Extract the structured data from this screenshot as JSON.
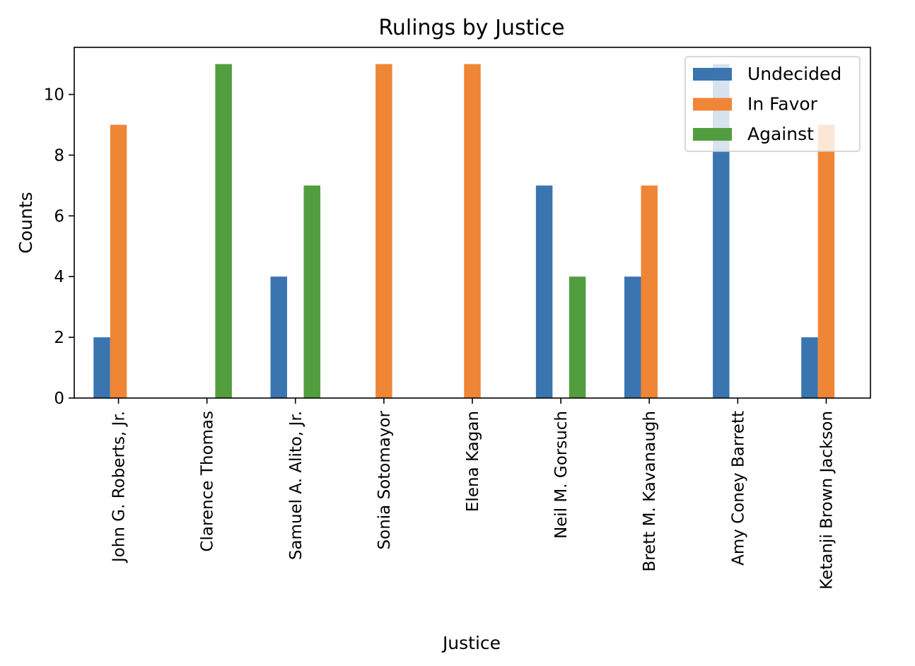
{
  "chart_data": {
    "type": "bar",
    "title": "Rulings by Justice",
    "xlabel": "Justice",
    "ylabel": "Counts",
    "categories": [
      "John G. Roberts, Jr.",
      "Clarence Thomas",
      "Samuel A. Alito, Jr.",
      "Sonia Sotomayor",
      "Elena Kagan",
      "Neil M. Gorsuch",
      "Brett M. Kavanaugh",
      "Amy Coney Barrett",
      "Ketanji Brown Jackson"
    ],
    "series": [
      {
        "name": "Undecided",
        "color": "#3a75b0",
        "values": [
          2,
          0,
          4,
          0,
          0,
          7,
          4,
          11,
          2
        ]
      },
      {
        "name": "In Favor",
        "color": "#ef8636",
        "values": [
          9,
          0,
          0,
          11,
          11,
          0,
          7,
          0,
          9
        ]
      },
      {
        "name": "Against",
        "color": "#529e3e",
        "values": [
          0,
          11,
          7,
          0,
          0,
          4,
          0,
          0,
          0
        ]
      }
    ],
    "ylim": [
      0,
      11.55
    ],
    "yticks": [
      0,
      2,
      4,
      6,
      8,
      10
    ],
    "grid": false,
    "legend_position": "top-right"
  }
}
